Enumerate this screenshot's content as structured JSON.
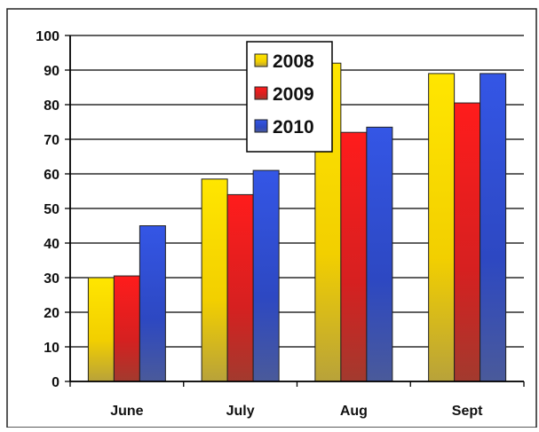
{
  "chart_data": {
    "type": "bar",
    "title": "",
    "xlabel": "",
    "ylabel": "",
    "categories": [
      "June",
      "July",
      "Aug",
      "Sept"
    ],
    "series": [
      {
        "name": "2008",
        "values": [
          30,
          58.5,
          92,
          89
        ],
        "color": "#f2d000"
      },
      {
        "name": "2009",
        "values": [
          30.5,
          54,
          72,
          80.5
        ],
        "color": "#dd2222"
      },
      {
        "name": "2010",
        "values": [
          45,
          61,
          73.5,
          89
        ],
        "color": "#2f4fd0"
      }
    ],
    "ylim": [
      0,
      100
    ],
    "yticks": [
      "0",
      "10",
      "20",
      "30",
      "40",
      "50",
      "60",
      "70",
      "80",
      "90",
      "100"
    ],
    "grid": true,
    "legend_position": "top-center"
  }
}
